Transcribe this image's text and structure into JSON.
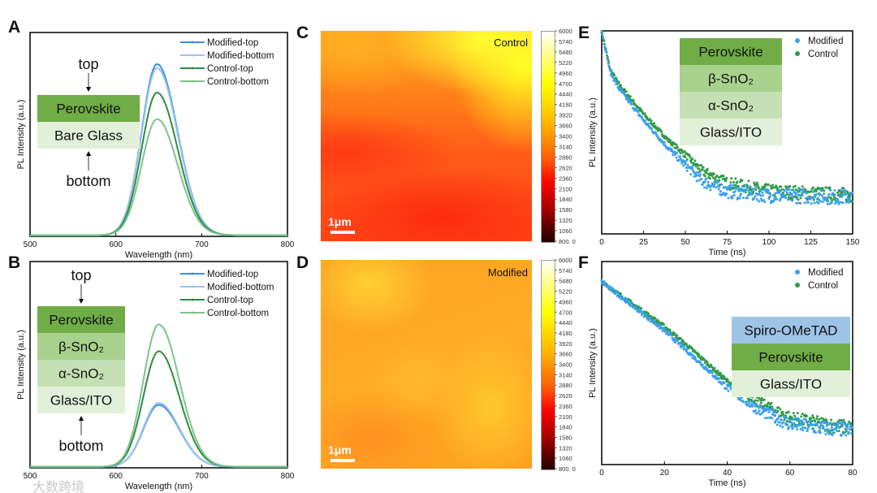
{
  "panel_labels": {
    "A": "A",
    "B": "B",
    "C": "C",
    "D": "D",
    "E": "E",
    "F": "F"
  },
  "watermark": "大数跨境",
  "colors": {
    "modified_top": "#3c8de0",
    "modified_bottom": "#9cc3ee",
    "control_top": "#2e8b3e",
    "control_bottom": "#7cc48c",
    "scatter_modified": "#3aa0ee",
    "scatter_control": "#2f9a46",
    "perovskite": "#70ad47",
    "beta_sno2": "#a9d18e",
    "alpha_sno2": "#c5e0b4",
    "glass": "#e2f0d9",
    "spiro": "#9dc3e6"
  },
  "panelA": {
    "annotations": {
      "top": "top",
      "bottom": "bottom"
    },
    "layers": [
      "Perovskite",
      "Bare Glass"
    ]
  },
  "panelB": {
    "annotations": {
      "top": "top",
      "bottom": "bottom"
    },
    "layers": [
      "Perovskite",
      "β-SnO₂",
      "α-SnO₂",
      "Glass/ITO"
    ]
  },
  "panelC": {
    "tag": "Control",
    "scale_bar": "1μm"
  },
  "panelD": {
    "tag": "Modified",
    "scale_bar": "1μm"
  },
  "colorbar_ticks": [
    "6000",
    "5740",
    "5480",
    "5220",
    "4960",
    "4700",
    "4440",
    "4180",
    "3920",
    "3660",
    "3400",
    "3140",
    "2880",
    "2620",
    "2360",
    "2100",
    "1840",
    "1580",
    "1320",
    "1060",
    "800. 0"
  ],
  "panelE": {
    "layers": [
      "Perovskite",
      "β-SnO₂",
      "α-SnO₂",
      "Glass/ITO"
    ]
  },
  "panelF": {
    "layers": [
      "Spiro-OMeTAD",
      "Perovskite",
      "Glass/ITO"
    ]
  },
  "chart_data": [
    {
      "id": "A",
      "type": "line",
      "xlabel": "Wavelength (nm)",
      "ylabel": "PL Intensity (a.u.)",
      "xlim": [
        500,
        800
      ],
      "ylim": [
        0,
        1
      ],
      "xticks": [
        "500",
        "600",
        "700",
        "800"
      ],
      "legend_position": "top-right",
      "peak_nm": 648,
      "series": [
        {
          "name": "Modified-top",
          "color_key": "modified_top",
          "peak": 0.84
        },
        {
          "name": "Modified-bottom",
          "color_key": "modified_bottom",
          "peak": 0.82
        },
        {
          "name": "Control-top",
          "color_key": "control_top",
          "peak": 0.7
        },
        {
          "name": "Control-bottom",
          "color_key": "control_bottom",
          "peak": 0.57
        }
      ]
    },
    {
      "id": "B",
      "type": "line",
      "xlabel": "Wavelength (nm)",
      "ylabel": "PL Intensity (a.u.)",
      "xlim": [
        500,
        800
      ],
      "ylim": [
        0,
        1
      ],
      "xticks": [
        "500",
        "600",
        "700",
        "800"
      ],
      "legend_position": "top-right",
      "peak_nm": 650,
      "series": [
        {
          "name": "Modified-top",
          "color_key": "modified_top",
          "peak": 0.3
        },
        {
          "name": "Modified-bottom",
          "color_key": "modified_bottom",
          "peak": 0.31
        },
        {
          "name": "Control-top",
          "color_key": "control_top",
          "peak": 0.56
        },
        {
          "name": "Control-bottom",
          "color_key": "control_bottom",
          "peak": 0.69
        }
      ]
    },
    {
      "id": "C",
      "type": "heatmap",
      "title": "Control",
      "colorbar_range": [
        800,
        6000
      ]
    },
    {
      "id": "D",
      "type": "heatmap",
      "title": "Modified",
      "colorbar_range": [
        800,
        6000
      ]
    },
    {
      "id": "E",
      "type": "scatter",
      "xlabel": "Time (ns)",
      "ylabel": "PL Intensity (a.u.)",
      "xlim": [
        0,
        150
      ],
      "ylim": [
        0,
        1
      ],
      "xticks": [
        "0",
        "25",
        "50",
        "75",
        "100",
        "125",
        "150"
      ],
      "legend_position": "top-right",
      "series": [
        {
          "name": "Modified",
          "color_key": "scatter_modified",
          "t": [
            0,
            5,
            10,
            25,
            40,
            50,
            60,
            75,
            100,
            150
          ],
          "y": [
            1.0,
            0.8,
            0.72,
            0.56,
            0.42,
            0.34,
            0.26,
            0.21,
            0.19,
            0.18
          ]
        },
        {
          "name": "Control",
          "color_key": "scatter_control",
          "t": [
            0,
            5,
            10,
            25,
            40,
            50,
            60,
            75,
            100,
            150
          ],
          "y": [
            1.0,
            0.81,
            0.74,
            0.59,
            0.46,
            0.39,
            0.31,
            0.25,
            0.21,
            0.19
          ]
        }
      ]
    },
    {
      "id": "F",
      "type": "scatter",
      "xlabel": "Time (ns)",
      "ylabel": "PL Intensity (a.u.)",
      "xlim": [
        0,
        80
      ],
      "ylim": [
        0,
        1
      ],
      "xticks": [
        "0",
        "20",
        "40",
        "60",
        "80"
      ],
      "legend_position": "top-right",
      "series": [
        {
          "name": "Modified",
          "color_key": "scatter_modified",
          "t": [
            0,
            10,
            20,
            30,
            40,
            50,
            60,
            70,
            80
          ],
          "y": [
            0.9,
            0.78,
            0.66,
            0.52,
            0.38,
            0.27,
            0.2,
            0.18,
            0.17
          ]
        },
        {
          "name": "Control",
          "color_key": "scatter_control",
          "t": [
            0,
            10,
            20,
            30,
            40,
            50,
            60,
            70,
            80
          ],
          "y": [
            0.9,
            0.79,
            0.68,
            0.55,
            0.41,
            0.31,
            0.23,
            0.2,
            0.18
          ]
        }
      ]
    }
  ]
}
